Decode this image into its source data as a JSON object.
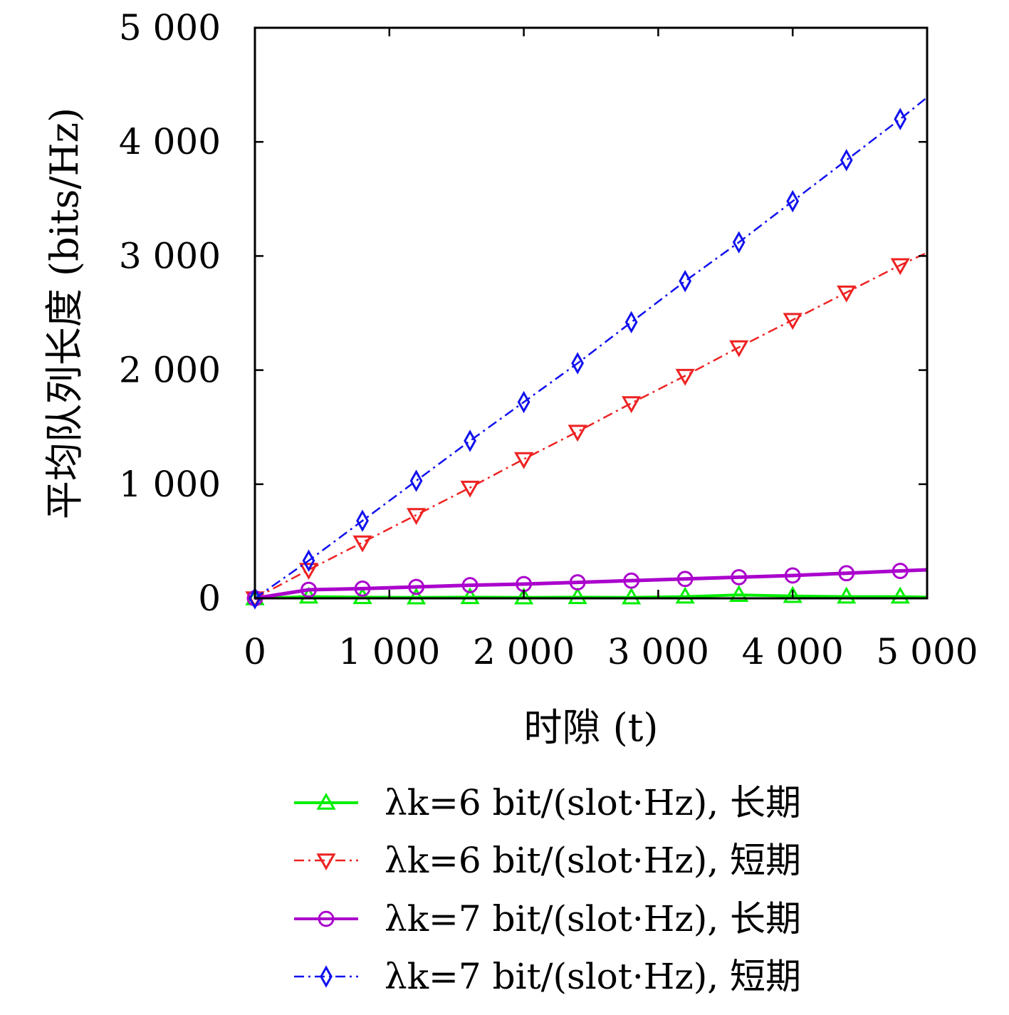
{
  "chart_data": {
    "type": "line",
    "title": "",
    "xlabel": "时隙 (t)",
    "ylabel": "平均队列长度 (bits/Hz)",
    "xlim": [
      0,
      5000
    ],
    "ylim": [
      0,
      5000
    ],
    "xticks": [
      0,
      1000,
      2000,
      3000,
      4000,
      5000
    ],
    "xtick_labels": [
      "0",
      "1 000",
      "2 000",
      "3 000",
      "4 000",
      "5 000"
    ],
    "yticks": [
      0,
      1000,
      2000,
      3000,
      4000,
      5000
    ],
    "ytick_labels": [
      "0",
      "1 000",
      "2 000",
      "3 000",
      "4 000",
      "5 000"
    ],
    "grid": false,
    "legend_position": "below",
    "series": [
      {
        "name": "λk=6 bit/(slot·Hz), 长期",
        "color": "#00ee00",
        "line_style": "solid",
        "marker": "triangle-up",
        "x": [
          0,
          400,
          800,
          1200,
          1600,
          2000,
          2400,
          2800,
          3200,
          3600,
          4000,
          4400,
          4800,
          5000
        ],
        "y": [
          0,
          15,
          10,
          8,
          10,
          8,
          10,
          8,
          15,
          30,
          20,
          15,
          15,
          10
        ]
      },
      {
        "name": "λk=6 bit/(slot·Hz), 短期",
        "color": "#ee2222",
        "line_style": "dashdot",
        "marker": "triangle-down",
        "x": [
          0,
          400,
          800,
          1200,
          1600,
          2000,
          2400,
          2800,
          3200,
          3600,
          4000,
          4400,
          4800,
          5000
        ],
        "y": [
          0,
          250,
          490,
          730,
          970,
          1220,
          1460,
          1710,
          1950,
          2200,
          2440,
          2680,
          2920,
          3030
        ]
      },
      {
        "name": "λk=7 bit/(slot·Hz), 长期",
        "color": "#aa00cc",
        "line_style": "solid",
        "marker": "circle",
        "x": [
          0,
          400,
          800,
          1200,
          1600,
          2000,
          2400,
          2800,
          3200,
          3600,
          4000,
          4400,
          4800,
          5000
        ],
        "y": [
          0,
          75,
          85,
          100,
          115,
          125,
          140,
          155,
          170,
          185,
          200,
          220,
          240,
          250
        ]
      },
      {
        "name": "λk=7 bit/(slot·Hz), 短期",
        "color": "#1111ee",
        "line_style": "dashdot",
        "marker": "diamond",
        "x": [
          0,
          400,
          800,
          1200,
          1600,
          2000,
          2400,
          2800,
          3200,
          3600,
          4000,
          4400,
          4800,
          5000
        ],
        "y": [
          0,
          330,
          680,
          1030,
          1380,
          1720,
          2060,
          2420,
          2780,
          3120,
          3480,
          3840,
          4200,
          4390
        ]
      }
    ]
  }
}
